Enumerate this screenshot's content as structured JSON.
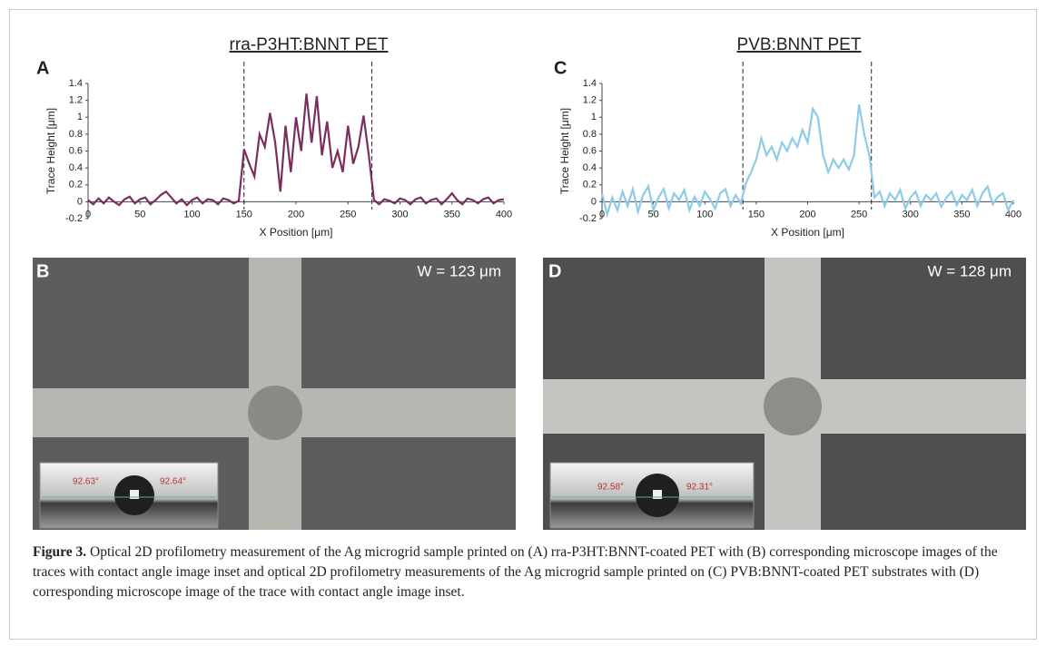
{
  "chart_data": [
    {
      "type": "line",
      "title": "rra-P3HT:BNNT PET",
      "panel": "A",
      "xlabel": "X Position [μm]",
      "ylabel": "Trace Height [μm]",
      "color": "#7b2d5e",
      "x": [
        0,
        5,
        10,
        15,
        20,
        25,
        30,
        35,
        40,
        45,
        50,
        55,
        60,
        65,
        70,
        75,
        80,
        85,
        90,
        95,
        100,
        105,
        110,
        115,
        120,
        125,
        130,
        135,
        140,
        145,
        150,
        155,
        160,
        165,
        170,
        175,
        180,
        185,
        190,
        195,
        200,
        205,
        210,
        215,
        220,
        225,
        230,
        235,
        240,
        245,
        250,
        255,
        260,
        265,
        270,
        275,
        280,
        285,
        290,
        295,
        300,
        305,
        310,
        315,
        320,
        325,
        330,
        335,
        340,
        345,
        350,
        355,
        360,
        365,
        370,
        375,
        380,
        385,
        390,
        395,
        400
      ],
      "values": [
        0.02,
        -0.03,
        0.04,
        -0.02,
        0.05,
        0,
        -0.04,
        0.03,
        0.06,
        -0.02,
        0.03,
        0.05,
        -0.03,
        0.02,
        0.08,
        0.12,
        0.05,
        -0.02,
        0.03,
        -0.04,
        0.02,
        0.05,
        -0.02,
        0.03,
        0.02,
        -0.03,
        0.04,
        0.02,
        -0.02,
        0.01,
        0.62,
        0.45,
        0.3,
        0.8,
        0.65,
        1.05,
        0.7,
        0.12,
        0.9,
        0.35,
        1.0,
        0.6,
        1.28,
        0.7,
        1.25,
        0.55,
        0.95,
        0.4,
        0.6,
        0.35,
        0.9,
        0.45,
        0.65,
        1.02,
        0.55,
        0.02,
        -0.03,
        0.03,
        0.01,
        -0.02,
        0.04,
        0.02,
        -0.03,
        0.03,
        0.05,
        -0.02,
        0.02,
        0.04,
        -0.03,
        0.03,
        0.1,
        0.02,
        -0.03,
        0.04,
        0.02,
        -0.02,
        0.03,
        0.05,
        -0.02,
        0.02,
        0.03
      ],
      "vlines": [
        150,
        273
      ],
      "xlim": [
        0,
        400
      ],
      "xticks": [
        0,
        50,
        100,
        150,
        200,
        250,
        300,
        350,
        400
      ],
      "ylim": [
        -0.2,
        1.4
      ],
      "yticks": [
        -0.2,
        0,
        0.2,
        0.4,
        0.6,
        0.8,
        1,
        1.2,
        1.4
      ]
    },
    {
      "type": "line",
      "title": "PVB:BNNT PET",
      "panel": "C",
      "xlabel": "X Position [μm]",
      "ylabel": "Trace Height [μm]",
      "color": "#8ecbe8",
      "x": [
        0,
        5,
        10,
        15,
        20,
        25,
        30,
        35,
        40,
        45,
        50,
        55,
        60,
        65,
        70,
        75,
        80,
        85,
        90,
        95,
        100,
        105,
        110,
        115,
        120,
        125,
        130,
        135,
        140,
        145,
        150,
        155,
        160,
        165,
        170,
        175,
        180,
        185,
        190,
        195,
        200,
        205,
        210,
        215,
        220,
        225,
        230,
        235,
        240,
        245,
        250,
        255,
        260,
        265,
        270,
        275,
        280,
        285,
        290,
        295,
        300,
        305,
        310,
        315,
        320,
        325,
        330,
        335,
        340,
        345,
        350,
        355,
        360,
        365,
        370,
        375,
        380,
        385,
        390,
        395,
        400
      ],
      "values": [
        0.1,
        -0.15,
        0.05,
        -0.1,
        0.12,
        -0.05,
        0.15,
        -0.12,
        0.08,
        0.18,
        -0.1,
        0.05,
        0.15,
        -0.08,
        0.1,
        0.02,
        0.14,
        -0.1,
        0.06,
        -0.05,
        0.12,
        0.03,
        -0.08,
        0.1,
        0.15,
        -0.05,
        0.08,
        -0.02,
        0.22,
        0.35,
        0.5,
        0.75,
        0.55,
        0.65,
        0.5,
        0.7,
        0.6,
        0.75,
        0.65,
        0.85,
        0.7,
        1.1,
        1.0,
        0.55,
        0.35,
        0.5,
        0.4,
        0.5,
        0.38,
        0.55,
        1.15,
        0.8,
        0.55,
        0.05,
        0.12,
        -0.05,
        0.1,
        0.02,
        0.14,
        -0.08,
        0.05,
        0.12,
        -0.05,
        0.08,
        0.02,
        0.1,
        -0.06,
        0.05,
        0.12,
        -0.04,
        0.08,
        0.02,
        0.14,
        -0.05,
        0.1,
        0.18,
        -0.03,
        0.06,
        0.1,
        -0.1,
        0.02
      ],
      "vlines": [
        137,
        262
      ],
      "xlim": [
        0,
        400
      ],
      "xticks": [
        0,
        50,
        100,
        150,
        200,
        250,
        300,
        350,
        400
      ],
      "ylim": [
        -0.2,
        1.4
      ],
      "yticks": [
        -0.2,
        0,
        0.2,
        0.4,
        0.6,
        0.8,
        1,
        1.2,
        1.4
      ]
    }
  ],
  "images": [
    {
      "panel": "B",
      "width_label": "W = 123 μm",
      "angles": [
        "92.63°",
        "92.64°"
      ]
    },
    {
      "panel": "D",
      "width_label": "W = 128 μm",
      "angles": [
        "92.58°",
        "92.31°"
      ]
    }
  ],
  "caption": {
    "label": "Figure 3.",
    "text": "Optical 2D profilometry measurement of the Ag microgrid sample printed on (A) rra-P3HT:BNNT-coated PET with (B) corresponding microscope images of the traces with contact angle image inset and optical 2D profilometry measurements of the Ag microgrid sample printed on (C) PVB:BNNT-coated PET substrates with (D) corresponding microscope image of the trace with contact angle image inset."
  }
}
